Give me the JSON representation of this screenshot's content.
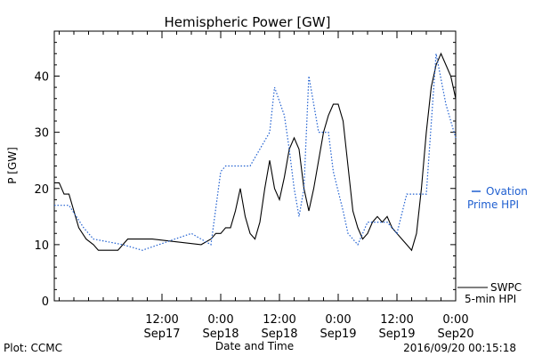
{
  "chart_data": {
    "type": "line",
    "title": "Hemispheric Power [GW]",
    "xlabel": "Date and Time",
    "ylabel": "P [GW]",
    "ylim": [
      0,
      48
    ],
    "yticks": [
      0,
      10,
      20,
      30,
      40
    ],
    "xlim": [
      "2016-09-16 14:00",
      "2016-09-20 00:00"
    ],
    "xticks": [
      {
        "time": "2016-09-17 12:00",
        "label": "12:00",
        "sublabel": "Sep17"
      },
      {
        "time": "2016-09-18 00:00",
        "label": "0:00",
        "sublabel": "Sep18"
      },
      {
        "time": "2016-09-18 12:00",
        "label": "12:00",
        "sublabel": "Sep18"
      },
      {
        "time": "2016-09-19 00:00",
        "label": "0:00",
        "sublabel": "Sep19"
      },
      {
        "time": "2016-09-19 12:00",
        "label": "12:00",
        "sublabel": "Sep19"
      },
      {
        "time": "2016-09-20 00:00",
        "label": "0:00",
        "sublabel": "Sep20"
      }
    ],
    "grid": false,
    "series": [
      {
        "name": "SWPC 5-min HPI",
        "color": "#000000",
        "style": "solid",
        "points": [
          [
            "2016-09-16 14:00",
            21
          ],
          [
            "2016-09-16 15:00",
            21
          ],
          [
            "2016-09-16 16:00",
            19
          ],
          [
            "2016-09-16 17:00",
            19
          ],
          [
            "2016-09-16 18:00",
            16
          ],
          [
            "2016-09-16 19:00",
            13
          ],
          [
            "2016-09-16 20:30",
            11
          ],
          [
            "2016-09-16 22:00",
            10
          ],
          [
            "2016-09-16 23:00",
            9
          ],
          [
            "2016-09-17 03:00",
            9
          ],
          [
            "2016-09-17 05:00",
            11
          ],
          [
            "2016-09-17 10:00",
            11
          ],
          [
            "2016-09-17 20:00",
            10
          ],
          [
            "2016-09-17 22:00",
            11
          ],
          [
            "2016-09-17 23:00",
            12
          ],
          [
            "2016-09-18 00:00",
            12
          ],
          [
            "2016-09-18 01:00",
            13
          ],
          [
            "2016-09-18 02:00",
            13
          ],
          [
            "2016-09-18 03:00",
            16
          ],
          [
            "2016-09-18 04:00",
            20
          ],
          [
            "2016-09-18 05:00",
            15
          ],
          [
            "2016-09-18 06:00",
            12
          ],
          [
            "2016-09-18 07:00",
            11
          ],
          [
            "2016-09-18 08:00",
            14
          ],
          [
            "2016-09-18 09:00",
            20
          ],
          [
            "2016-09-18 10:00",
            25
          ],
          [
            "2016-09-18 11:00",
            20
          ],
          [
            "2016-09-18 12:00",
            18
          ],
          [
            "2016-09-18 13:00",
            22
          ],
          [
            "2016-09-18 14:00",
            27
          ],
          [
            "2016-09-18 15:00",
            29
          ],
          [
            "2016-09-18 16:00",
            27
          ],
          [
            "2016-09-18 17:00",
            20
          ],
          [
            "2016-09-18 18:00",
            16
          ],
          [
            "2016-09-18 19:00",
            20
          ],
          [
            "2016-09-18 20:00",
            25
          ],
          [
            "2016-09-18 21:00",
            30
          ],
          [
            "2016-09-18 22:00",
            33
          ],
          [
            "2016-09-18 23:00",
            35
          ],
          [
            "2016-09-19 00:00",
            35
          ],
          [
            "2016-09-19 01:00",
            32
          ],
          [
            "2016-09-19 02:00",
            24
          ],
          [
            "2016-09-19 03:00",
            16
          ],
          [
            "2016-09-19 04:00",
            13
          ],
          [
            "2016-09-19 05:00",
            11
          ],
          [
            "2016-09-19 06:00",
            12
          ],
          [
            "2016-09-19 07:00",
            14
          ],
          [
            "2016-09-19 08:00",
            15
          ],
          [
            "2016-09-19 09:00",
            14
          ],
          [
            "2016-09-19 10:00",
            15
          ],
          [
            "2016-09-19 11:00",
            13
          ],
          [
            "2016-09-19 12:00",
            12
          ],
          [
            "2016-09-19 13:00",
            11
          ],
          [
            "2016-09-19 14:00",
            10
          ],
          [
            "2016-09-19 15:00",
            9
          ],
          [
            "2016-09-19 16:00",
            12
          ],
          [
            "2016-09-19 17:00",
            20
          ],
          [
            "2016-09-19 18:00",
            30
          ],
          [
            "2016-09-19 19:00",
            38
          ],
          [
            "2016-09-19 20:00",
            42
          ],
          [
            "2016-09-19 21:00",
            44
          ],
          [
            "2016-09-19 22:00",
            42
          ],
          [
            "2016-09-19 23:00",
            40
          ],
          [
            "2016-09-20 00:00",
            36
          ]
        ]
      },
      {
        "name": "Ovation Prime HPI",
        "color": "#1f5fd0",
        "style": "dotted",
        "points": [
          [
            "2016-09-16 14:00",
            17
          ],
          [
            "2016-09-16 17:00",
            17
          ],
          [
            "2016-09-16 20:00",
            13
          ],
          [
            "2016-09-16 22:00",
            11
          ],
          [
            "2016-09-17 04:00",
            10
          ],
          [
            "2016-09-17 08:00",
            9
          ],
          [
            "2016-09-17 18:00",
            12
          ],
          [
            "2016-09-17 22:00",
            10
          ],
          [
            "2016-09-18 00:00",
            23
          ],
          [
            "2016-09-18 01:00",
            24
          ],
          [
            "2016-09-18 06:00",
            24
          ],
          [
            "2016-09-18 10:00",
            30
          ],
          [
            "2016-09-18 11:00",
            38
          ],
          [
            "2016-09-18 13:00",
            33
          ],
          [
            "2016-09-18 14:00",
            27
          ],
          [
            "2016-09-18 15:00",
            20
          ],
          [
            "2016-09-18 16:00",
            15
          ],
          [
            "2016-09-18 17:00",
            20
          ],
          [
            "2016-09-18 18:00",
            40
          ],
          [
            "2016-09-18 20:00",
            30
          ],
          [
            "2016-09-18 22:00",
            30
          ],
          [
            "2016-09-18 23:00",
            23
          ],
          [
            "2016-09-19 01:00",
            16
          ],
          [
            "2016-09-19 02:00",
            12
          ],
          [
            "2016-09-19 04:00",
            10
          ],
          [
            "2016-09-19 06:00",
            14
          ],
          [
            "2016-09-19 10:00",
            14
          ],
          [
            "2016-09-19 12:00",
            12
          ],
          [
            "2016-09-19 14:00",
            19
          ],
          [
            "2016-09-19 18:00",
            19
          ],
          [
            "2016-09-19 20:00",
            44
          ],
          [
            "2016-09-19 22:00",
            35
          ],
          [
            "2016-09-20 00:00",
            29
          ]
        ]
      }
    ],
    "legend": {
      "ovation": "Ovation",
      "prime": "Prime HPI",
      "swpc": "SWPC",
      "hpi5": "5-min HPI"
    },
    "footer": {
      "left": "Plot: CCMC",
      "right": "2016/09/20 00:15:18"
    }
  }
}
